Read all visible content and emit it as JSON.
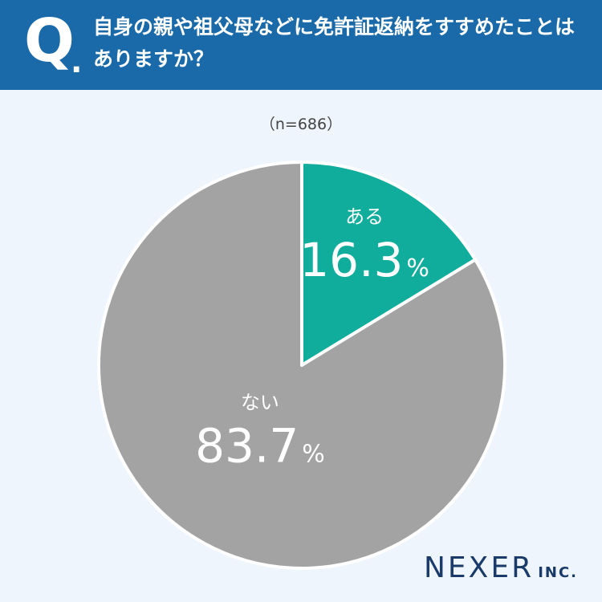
{
  "header": {
    "q_mark": "Q",
    "q_dot": ".",
    "question": "自身の親や祖父母などに免許証返納をすすめたことはありますか？"
  },
  "sample_size": "（n=686）",
  "brand": {
    "main": "NEXER",
    "sub": "INC."
  },
  "colors": {
    "header": "#1a6aaa",
    "yes": "#10ad9c",
    "no": "#a3a3a3",
    "background": "#eef5fc"
  },
  "chart_data": {
    "type": "pie",
    "title": "",
    "slices": [
      {
        "label": "ある",
        "value": 16.3,
        "display": "16.3",
        "unit": "%",
        "color": "#10ad9c"
      },
      {
        "label": "ない",
        "value": 83.7,
        "display": "83.7",
        "unit": "%",
        "color": "#a3a3a3"
      }
    ]
  }
}
